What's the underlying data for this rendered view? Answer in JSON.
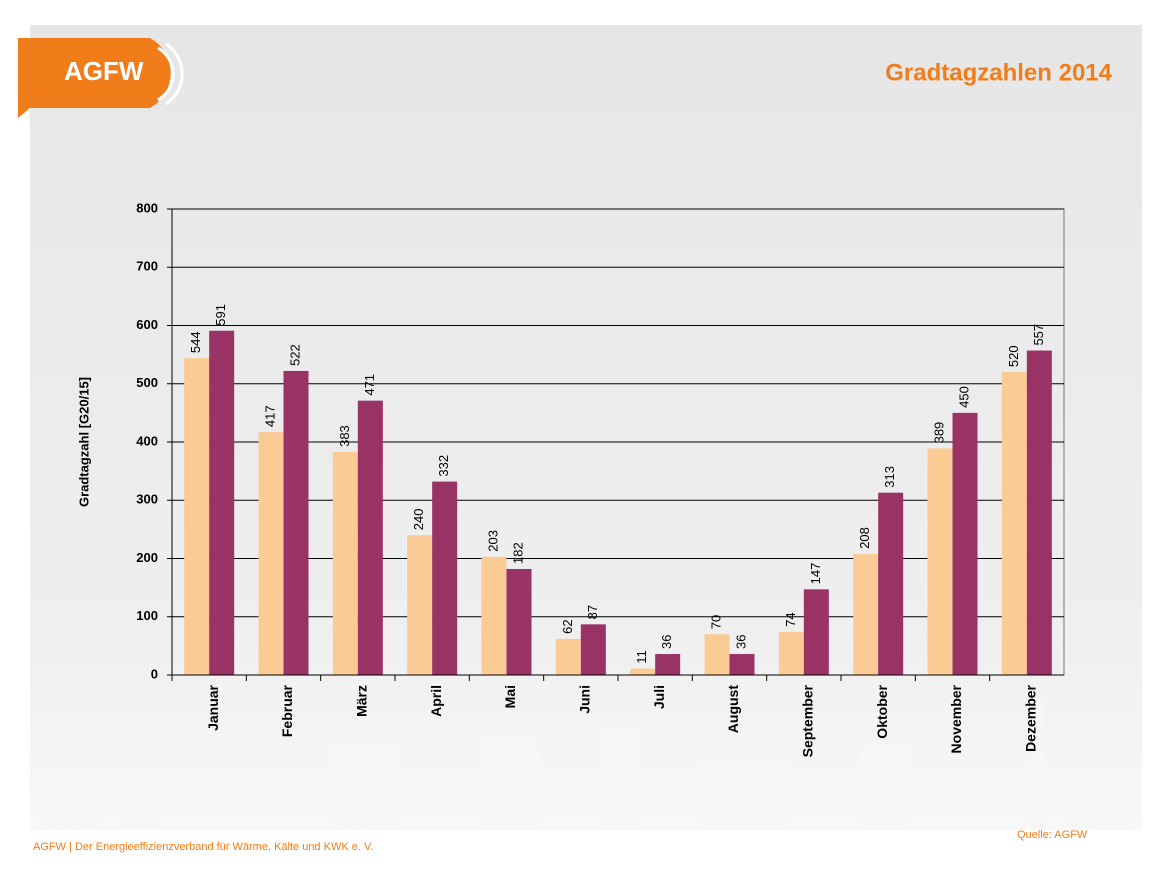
{
  "logo": "AGFW",
  "footer": "AGFW | Der Energieeffizienzverband für Wärme, Kälte und KWK e. V.",
  "source": "Quelle:  AGFW",
  "chart_data": {
    "type": "bar",
    "title": "Gradtagzahlen 2014",
    "y_label": "Gradtagzahl [G20/15]",
    "categories": [
      "Januar",
      "Februar",
      "März",
      "April",
      "Mai",
      "Juni",
      "Juli",
      "August",
      "September",
      "Oktober",
      "November",
      "Dezember"
    ],
    "series": [
      {
        "color": "#fbcb96",
        "values": [
          544,
          417,
          383,
          240,
          203,
          62,
          11,
          70,
          74,
          208,
          389,
          520
        ]
      },
      {
        "color": "#993366",
        "values": [
          591,
          522,
          471,
          332,
          182,
          87,
          36,
          36,
          147,
          313,
          450,
          557
        ]
      }
    ],
    "ylim": [
      0,
      800
    ],
    "yticks": [
      0,
      100,
      200,
      300,
      400,
      500,
      600,
      700,
      800
    ],
    "grid": true
  }
}
